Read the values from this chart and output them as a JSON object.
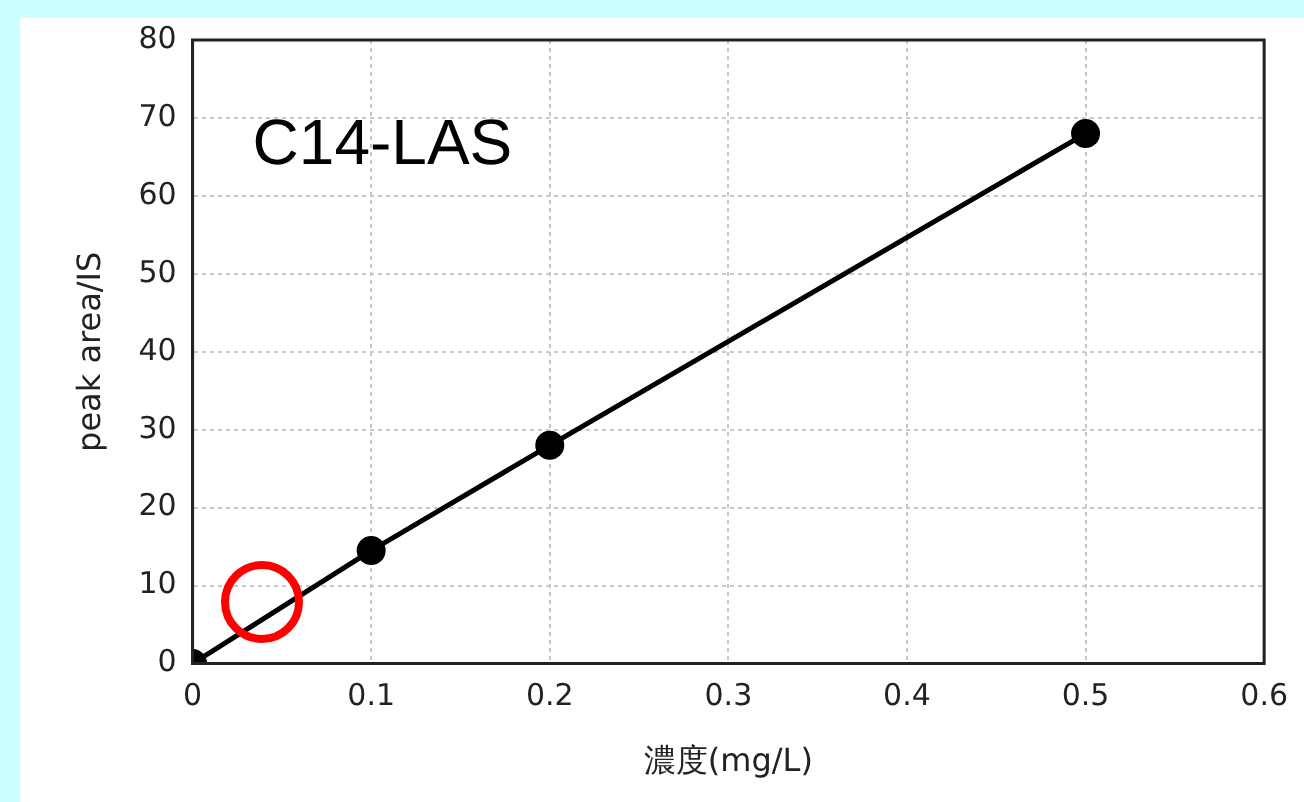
{
  "chart_data": {
    "type": "line",
    "title": "C14-LAS",
    "xlabel": "濃度(mg/L)",
    "ylabel": "peak area/IS",
    "x": [
      0,
      0.1,
      0.2,
      0.5
    ],
    "series": [
      {
        "color": "#000000",
        "values": [
          0,
          14.5,
          28,
          68
        ]
      }
    ],
    "xlim": [
      0,
      0.6
    ],
    "xticks": [
      0,
      0.1,
      0.2,
      0.3,
      0.4,
      0.5,
      0.6
    ],
    "ylim": [
      0,
      80
    ],
    "yticks": [
      0,
      10,
      20,
      30,
      40,
      50,
      60,
      70,
      80
    ],
    "grid": true,
    "marker": "circle",
    "line_style": "solid",
    "legend": false
  }
}
